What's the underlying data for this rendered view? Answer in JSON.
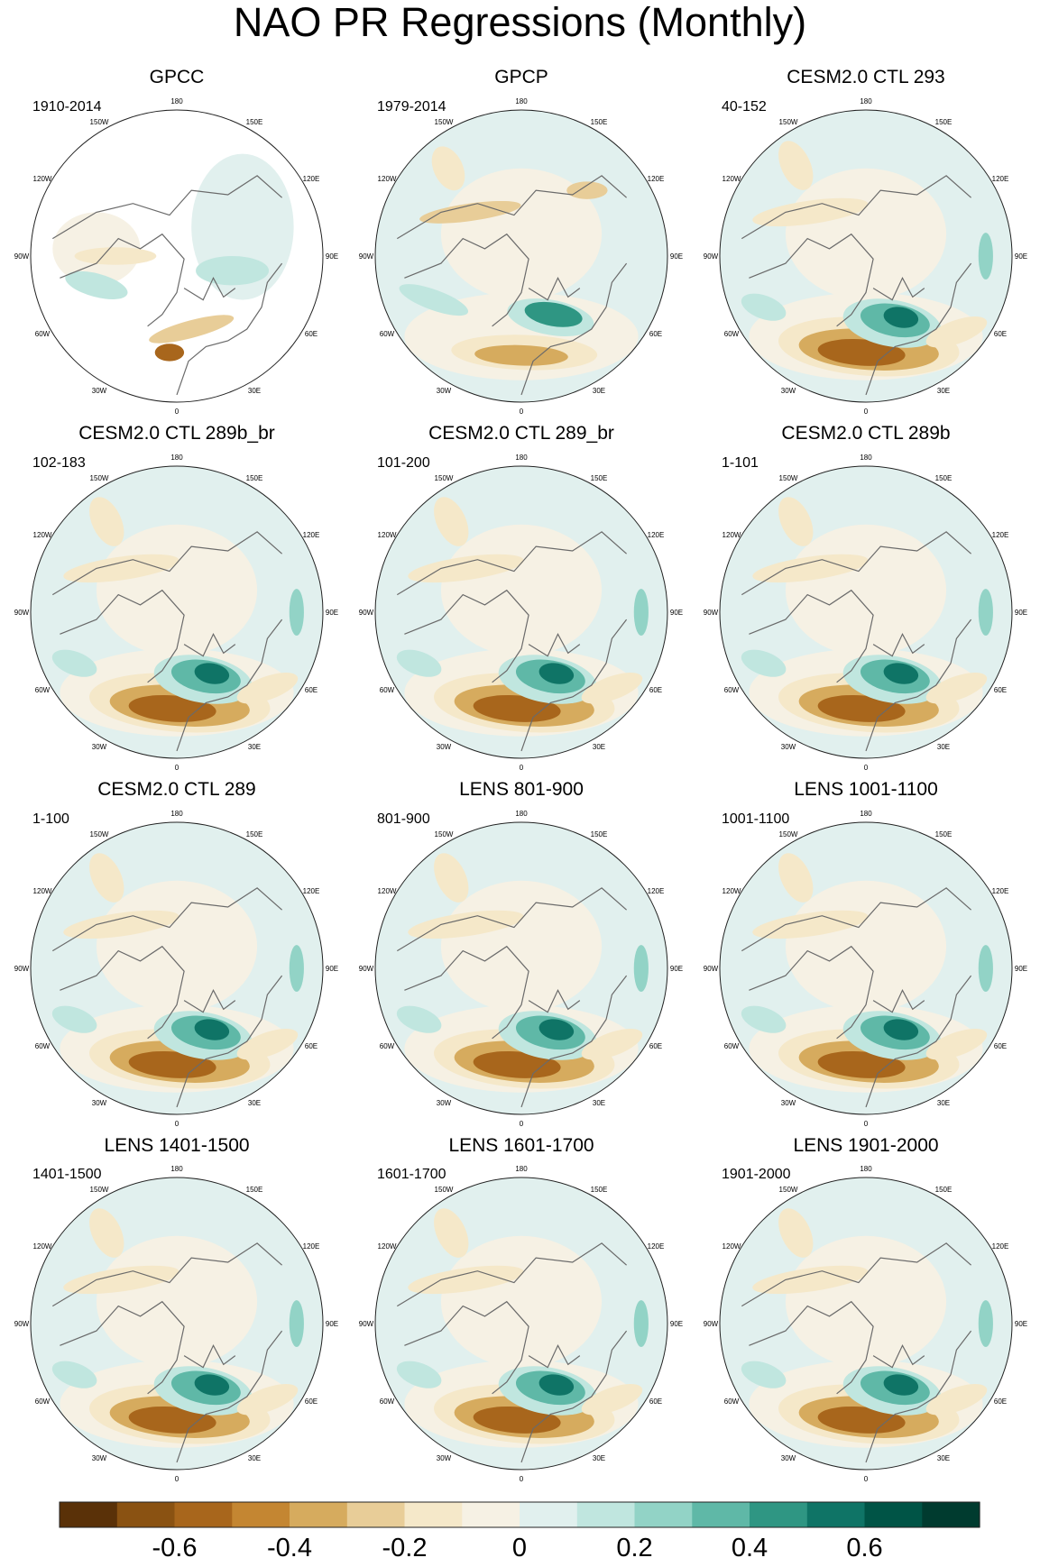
{
  "title": "NAO PR Regressions (Monthly)",
  "panels": [
    {
      "title": "GPCC",
      "period": "1910-2014",
      "variant": "gpcc"
    },
    {
      "title": "GPCP",
      "period": "1979-2014",
      "variant": "obs"
    },
    {
      "title": "CESM2.0 CTL 293",
      "period": "40-152",
      "variant": "model"
    },
    {
      "title": "CESM2.0 CTL 289b_br",
      "period": "102-183",
      "variant": "model"
    },
    {
      "title": "CESM2.0 CTL 289_br",
      "period": "101-200",
      "variant": "model"
    },
    {
      "title": "CESM2.0 CTL 289b",
      "period": "1-101",
      "variant": "model"
    },
    {
      "title": "CESM2.0 CTL 289",
      "period": "1-100",
      "variant": "model"
    },
    {
      "title": "LENS 801-900",
      "period": "801-900",
      "variant": "model"
    },
    {
      "title": "LENS 1001-1100",
      "period": "1001-1100",
      "variant": "model"
    },
    {
      "title": "LENS 1401-1500",
      "period": "1401-1500",
      "variant": "model"
    },
    {
      "title": "LENS 1601-1700",
      "period": "1601-1700",
      "variant": "model"
    },
    {
      "title": "LENS 1901-2000",
      "period": "1901-2000",
      "variant": "model"
    }
  ],
  "longitude_labels": [
    "180",
    "150E",
    "120E",
    "90E",
    "60E",
    "30E",
    "0",
    "30W",
    "60W",
    "90W",
    "120W",
    "150W"
  ],
  "colorbar": {
    "colors": [
      "#5a3108",
      "#8a5212",
      "#a8661c",
      "#c48632",
      "#d6ab5e",
      "#e8cd98",
      "#f5e8c9",
      "#f6f1e4",
      "#e1f0ee",
      "#c0e6df",
      "#92d3c6",
      "#5fb8a7",
      "#2f9683",
      "#0f7466",
      "#005446",
      "#003b2f"
    ],
    "tick_labels": [
      "-0.6",
      "-0.4",
      "-0.2",
      "0",
      "0.2",
      "0.4",
      "0.6"
    ]
  }
}
